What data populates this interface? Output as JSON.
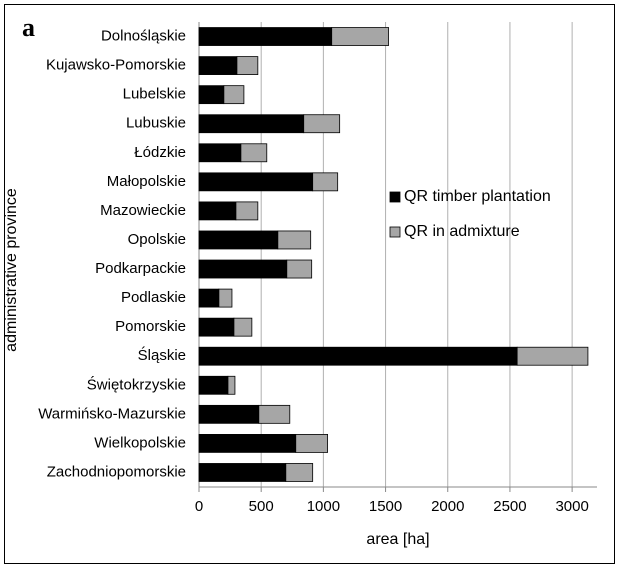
{
  "chart_data": {
    "type": "stacked_barh",
    "panel_label": "a",
    "x_label": "area [ha]",
    "y_label": "administrative province",
    "categories": [
      "Dolnośląskie",
      "Kujawsko-Pomorskie",
      "Lubelskie",
      "Lubuskie",
      "Łódzkie",
      "Małopolskie",
      "Mazowieckie",
      "Opolskie",
      "Podkarpackie",
      "Podlaskie",
      "Pomorskie",
      "Śląskie",
      "Świętokrzyskie",
      "Warmińsko-Mazurskie",
      "Wielkopolskie",
      "Zachodniopomorskie"
    ],
    "series": [
      {
        "name": "QR timber plantation",
        "color": "#000000",
        "values": [
          1067,
          305,
          200,
          842,
          337,
          914,
          297,
          634,
          706,
          160,
          281,
          2558,
          233,
          481,
          778,
          698
        ]
      },
      {
        "name": "QR in admixture",
        "color": "#a6a6a6",
        "values": [
          457,
          168,
          161,
          289,
          208,
          201,
          176,
          264,
          200,
          105,
          144,
          569,
          56,
          249,
          256,
          216
        ]
      }
    ],
    "xlim": [
      0,
      3200
    ],
    "xticks": [
      0,
      500,
      1000,
      1500,
      2000,
      2500,
      3000
    ],
    "grid": true,
    "legend": "right"
  }
}
